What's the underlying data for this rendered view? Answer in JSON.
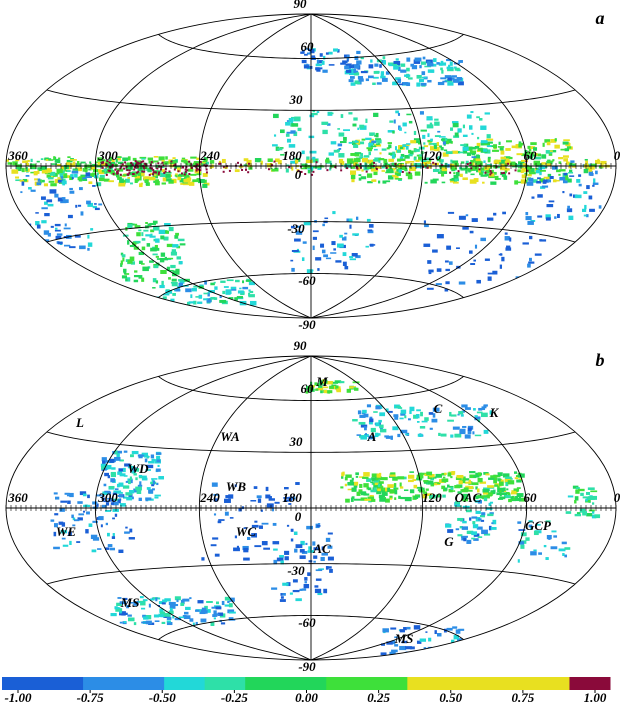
{
  "panels": [
    {
      "label": "a",
      "lon_labels": [
        "360",
        "300",
        "240",
        "180",
        "120",
        "60",
        "0"
      ],
      "lat_labels": [
        "90",
        "60",
        "30",
        "0",
        "-30",
        "-60",
        "-90"
      ]
    },
    {
      "label": "b",
      "lon_labels": [
        "360",
        "300",
        "240",
        "180",
        "120",
        "60",
        "0"
      ],
      "lat_labels": [
        "90",
        "60",
        "30",
        "0",
        "-30",
        "-60",
        "-90"
      ],
      "regions": [
        "M",
        "C",
        "K",
        "L",
        "WA",
        "A",
        "WD",
        "WB",
        "OAC",
        "WE",
        "WC",
        "GCP",
        "G",
        "AC",
        "MS",
        "MS"
      ]
    }
  ],
  "colorbar": {
    "colors": [
      "#1a5fd6",
      "#1a5fd6",
      "#2c8de6",
      "#2c8de6",
      "#22d8d8",
      "#2ee0a8",
      "#22d65a",
      "#22d65a",
      "#3ee03a",
      "#3ee03a",
      "#e8e020",
      "#e8e020",
      "#e8e020",
      "#e8e020",
      "#8a0a3a"
    ],
    "ticks": [
      {
        "value": -1,
        "label": "-1.00"
      },
      {
        "value": -0.75,
        "label": "-0.75"
      },
      {
        "value": -0.5,
        "label": "-0.50"
      },
      {
        "value": -0.25,
        "label": "-0.25"
      },
      {
        "value": 0,
        "label": "0.00"
      },
      {
        "value": 0.25,
        "label": "0.25"
      },
      {
        "value": 0.5,
        "label": "0.50"
      },
      {
        "value": 0.75,
        "label": "0.75"
      },
      {
        "value": 1,
        "label": "1.00"
      }
    ]
  }
}
